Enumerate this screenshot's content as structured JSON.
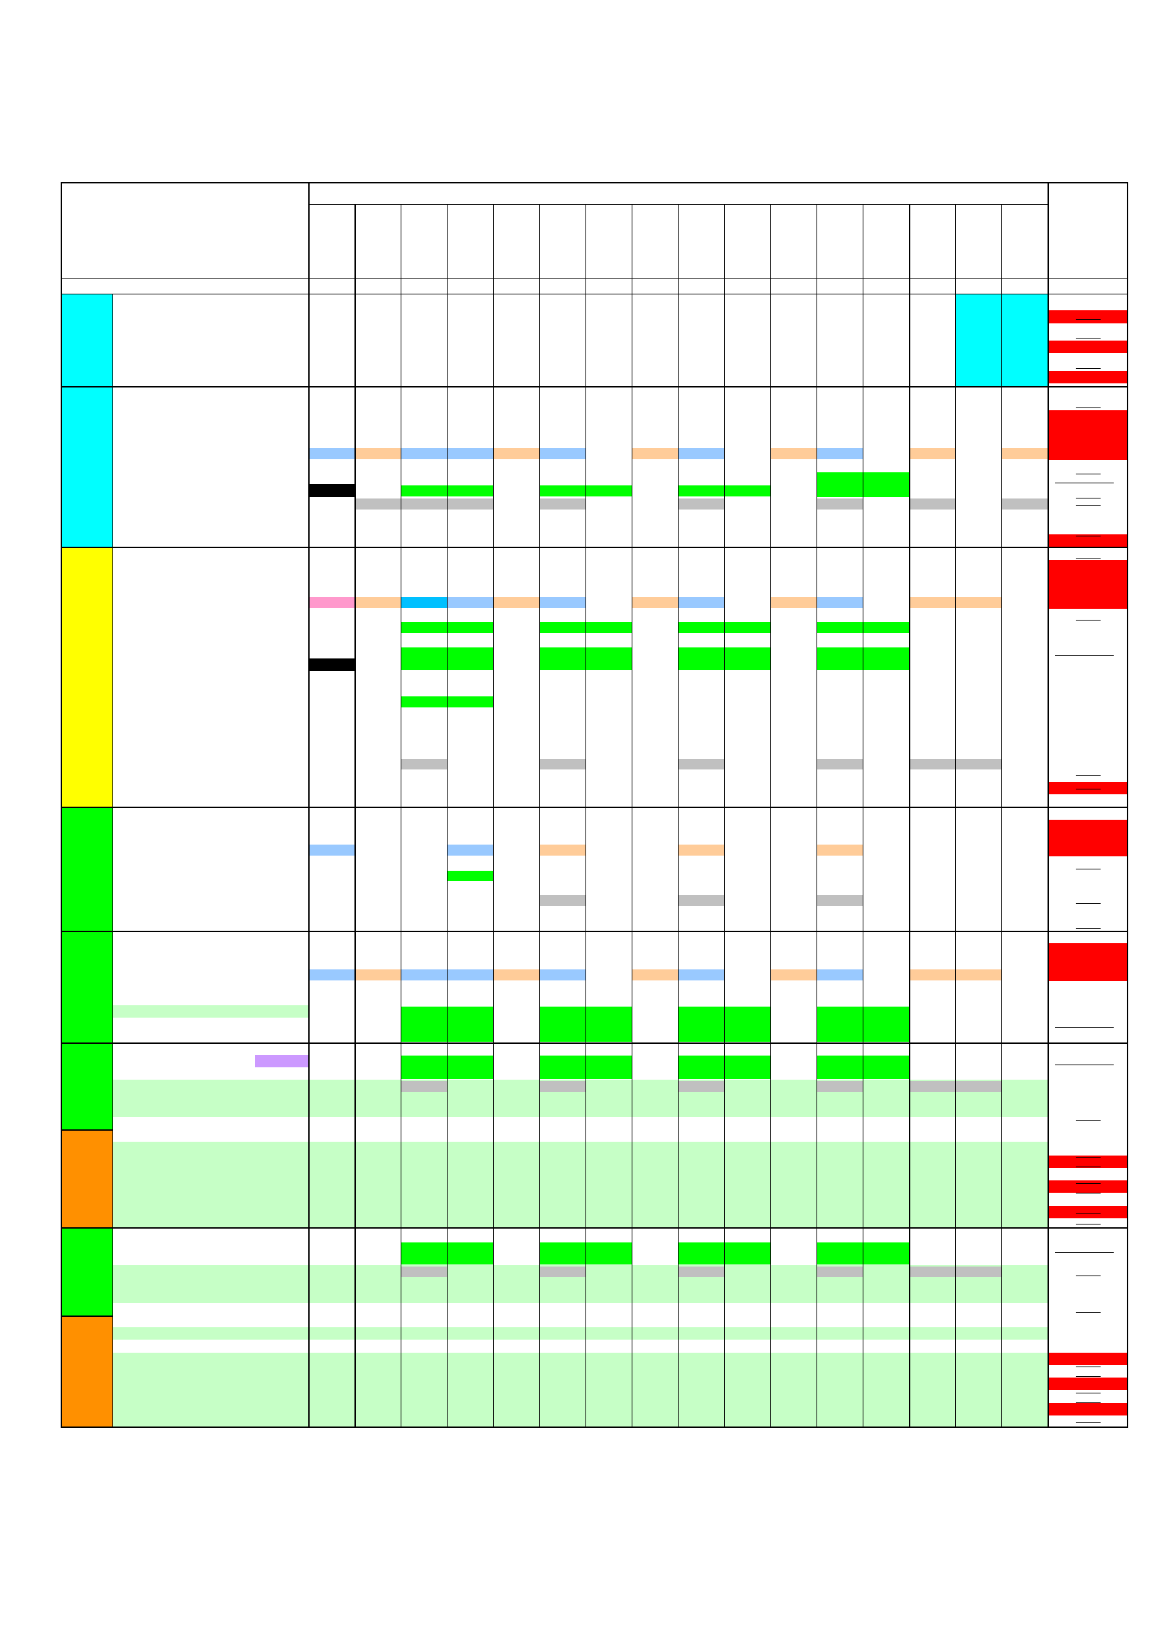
{
  "colors": {
    "cyan": "#00ffff",
    "yellow": "#ffff00",
    "green": "#00ff00",
    "orange": "#ff9000",
    "red": "#ff0000",
    "light_blue": "#99c9ff",
    "peach": "#ffcc99",
    "pink": "#ff99cc",
    "sky": "#00c0ff",
    "grey": "#c0c0c0",
    "black": "#000000",
    "pale_green": "#c6ffc6",
    "lavender": "#cc99ff"
  },
  "section_bands": [
    {
      "color": "cyan"
    },
    {
      "color": "cyan"
    },
    {
      "color": "yellow"
    },
    {
      "color": "green"
    },
    {
      "color": "green"
    },
    {
      "color": "green"
    },
    {
      "color": "orange"
    },
    {
      "color": "green"
    },
    {
      "color": "orange"
    }
  ],
  "column_count": 16,
  "cell_text": {}
}
